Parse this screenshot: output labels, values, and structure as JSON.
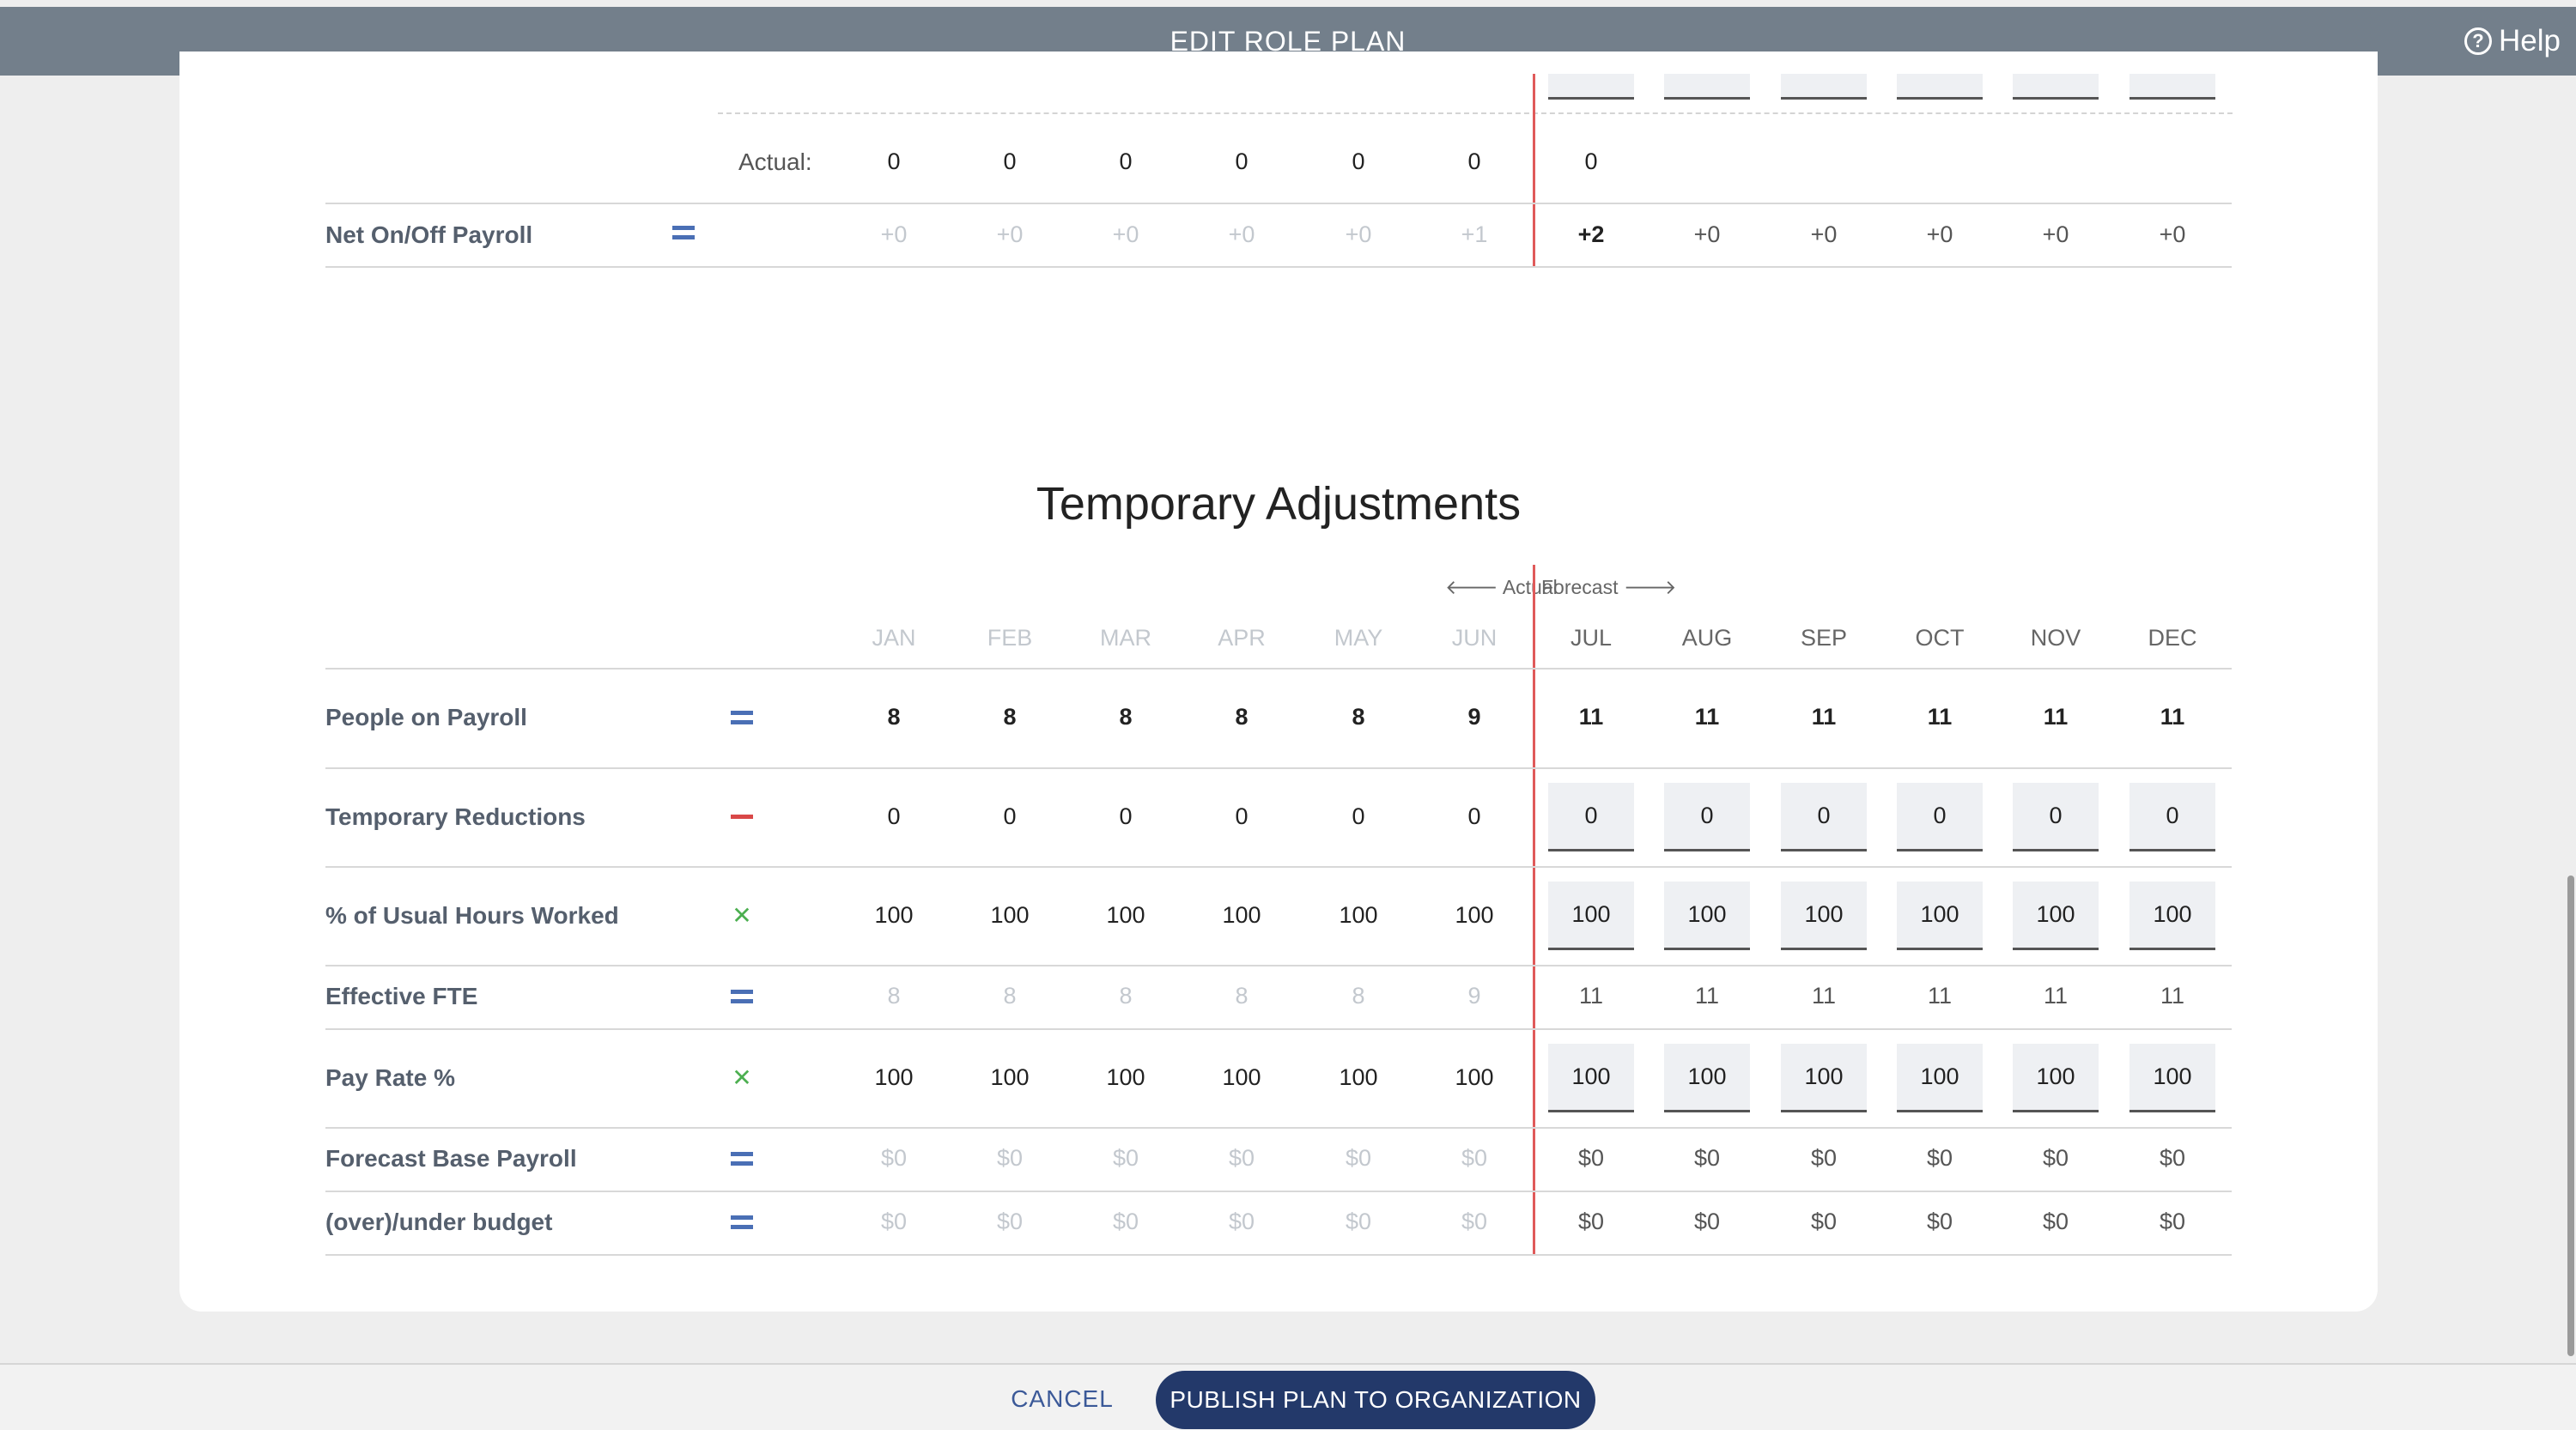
{
  "header": {
    "title": "EDIT ROLE PLAN",
    "help_label": "Help"
  },
  "months": [
    "JAN",
    "FEB",
    "MAR",
    "APR",
    "MAY",
    "JUN",
    "JUL",
    "AUG",
    "SEP",
    "OCT",
    "NOV",
    "DEC"
  ],
  "top_section": {
    "actual_label": "Actual:",
    "actual_values": [
      "0",
      "0",
      "0",
      "0",
      "0",
      "0",
      "0"
    ],
    "net_row": {
      "label": "Net On/Off Payroll",
      "operator": "=",
      "values": [
        "+0",
        "+0",
        "+0",
        "+0",
        "+0",
        "+1",
        "+2",
        "+0",
        "+0",
        "+0",
        "+0",
        "+0"
      ]
    }
  },
  "temp": {
    "title": "Temporary Adjustments",
    "actual_label": "Actual",
    "forecast_label": "Forecast",
    "rows": [
      {
        "label": "People on Payroll",
        "operator": "=",
        "values": [
          "8",
          "8",
          "8",
          "8",
          "8",
          "9",
          "11",
          "11",
          "11",
          "11",
          "11",
          "11"
        ]
      },
      {
        "label": "Temporary Reductions",
        "operator": "−",
        "values": [
          "0",
          "0",
          "0",
          "0",
          "0",
          "0",
          "0",
          "0",
          "0",
          "0",
          "0",
          "0"
        ]
      },
      {
        "label": "% of Usual Hours Worked",
        "operator": "×",
        "values": [
          "100",
          "100",
          "100",
          "100",
          "100",
          "100",
          "100",
          "100",
          "100",
          "100",
          "100",
          "100"
        ]
      },
      {
        "label": "Effective FTE",
        "operator": "=",
        "values": [
          "8",
          "8",
          "8",
          "8",
          "8",
          "9",
          "11",
          "11",
          "11",
          "11",
          "11",
          "11"
        ]
      },
      {
        "label": "Pay Rate %",
        "operator": "×",
        "values": [
          "100",
          "100",
          "100",
          "100",
          "100",
          "100",
          "100",
          "100",
          "100",
          "100",
          "100",
          "100"
        ]
      },
      {
        "label": "Forecast Base Payroll",
        "operator": "=",
        "values": [
          "$0",
          "$0",
          "$0",
          "$0",
          "$0",
          "$0",
          "$0",
          "$0",
          "$0",
          "$0",
          "$0",
          "$0"
        ]
      },
      {
        "label": "(over)/under budget",
        "operator": "=",
        "values": [
          "$0",
          "$0",
          "$0",
          "$0",
          "$0",
          "$0",
          "$0",
          "$0",
          "$0",
          "$0",
          "$0",
          "$0"
        ]
      }
    ]
  },
  "footer": {
    "cancel_label": "CANCEL",
    "publish_label": "PUBLISH PLAN TO ORGANIZATION"
  }
}
